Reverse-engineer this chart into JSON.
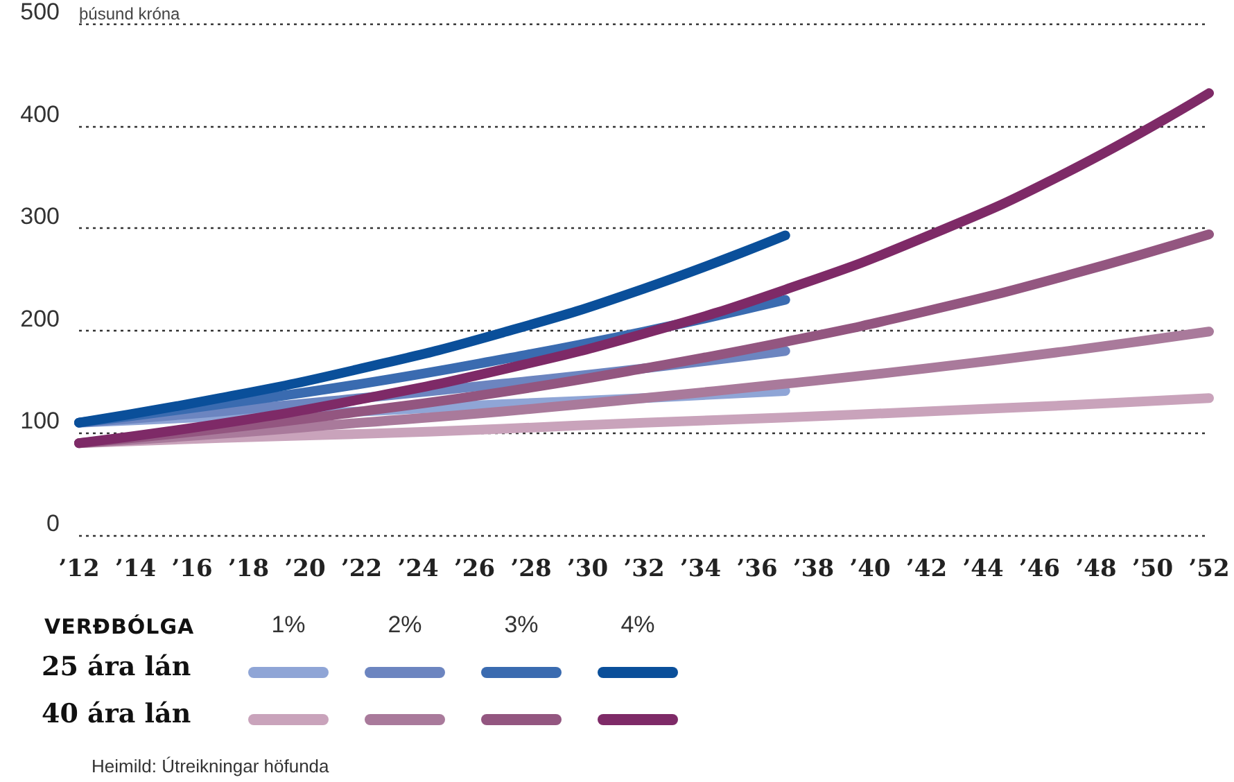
{
  "chart_data": {
    "type": "line",
    "ylabel": "þúsund króna",
    "legend_title": "VERÐBÓLGA",
    "annotations": [
      "1%",
      "2%",
      "3%",
      "4%",
      "25 ára lán",
      "40 ára lán",
      "Heimild: Útreikningar höfunda"
    ],
    "xlim": [
      2012,
      2052
    ],
    "ylim": [
      0,
      500
    ],
    "yticks": [
      0,
      100,
      200,
      300,
      400,
      500
    ],
    "xticks": [
      {
        "value": 2012,
        "label": "’12"
      },
      {
        "value": 2014,
        "label": "’14"
      },
      {
        "value": 2016,
        "label": "’16"
      },
      {
        "value": 2018,
        "label": "’18"
      },
      {
        "value": 2020,
        "label": "’20"
      },
      {
        "value": 2022,
        "label": "’22"
      },
      {
        "value": 2024,
        "label": "’24"
      },
      {
        "value": 2026,
        "label": "’26"
      },
      {
        "value": 2028,
        "label": "’28"
      },
      {
        "value": 2030,
        "label": "’30"
      },
      {
        "value": 2032,
        "label": "’32"
      },
      {
        "value": 2034,
        "label": "’34"
      },
      {
        "value": 2036,
        "label": "’36"
      },
      {
        "value": 2038,
        "label": "’38"
      },
      {
        "value": 2040,
        "label": "’40"
      },
      {
        "value": 2042,
        "label": "’42"
      },
      {
        "value": 2044,
        "label": "’44"
      },
      {
        "value": 2046,
        "label": "’46"
      },
      {
        "value": 2048,
        "label": "’48"
      },
      {
        "value": 2050,
        "label": "’50"
      },
      {
        "value": 2052,
        "label": "’52"
      }
    ],
    "grid": "y",
    "line_style": "solid",
    "series": [
      {
        "color": "#8fa5d6",
        "x": [
          2012,
          2017,
          2022,
          2027,
          2032,
          2037
        ],
        "values": [
          110,
          116,
          121,
          128,
          134,
          141
        ]
      },
      {
        "color": "#6c85c0",
        "x": [
          2012,
          2017,
          2022,
          2027,
          2032,
          2037
        ],
        "values": [
          110,
          121,
          134,
          148,
          163,
          180
        ]
      },
      {
        "color": "#3a6bb0",
        "x": [
          2012,
          2017,
          2022,
          2027,
          2032,
          2037
        ],
        "values": [
          110,
          128,
          148,
          172,
          199,
          230
        ]
      },
      {
        "color": "#0a4f9a",
        "x": [
          2012,
          2017,
          2022,
          2027,
          2032,
          2037
        ],
        "values": [
          110,
          134,
          163,
          198,
          241,
          293
        ]
      },
      {
        "color": "#c9a3bb",
        "x": [
          2012,
          2017,
          2022,
          2027,
          2032,
          2037,
          2042,
          2047,
          2052
        ],
        "values": [
          90,
          95,
          99,
          104,
          110,
          115,
          121,
          127,
          134
        ]
      },
      {
        "color": "#a97a9b",
        "x": [
          2012,
          2017,
          2022,
          2027,
          2032,
          2037,
          2042,
          2047,
          2052
        ],
        "values": [
          90,
          99,
          110,
          121,
          134,
          148,
          163,
          180,
          199
        ]
      },
      {
        "color": "#935680",
        "x": [
          2012,
          2017,
          2022,
          2027,
          2032,
          2037,
          2042,
          2047,
          2052
        ],
        "values": [
          90,
          104,
          121,
          140,
          163,
          189,
          219,
          254,
          294
        ]
      },
      {
        "color": "#7e2a67",
        "x": [
          2012,
          2017,
          2022,
          2027,
          2032,
          2037,
          2042,
          2047,
          2052
        ],
        "values": [
          90,
          109,
          133,
          162,
          197,
          240,
          292,
          355,
          432
        ]
      }
    ]
  }
}
